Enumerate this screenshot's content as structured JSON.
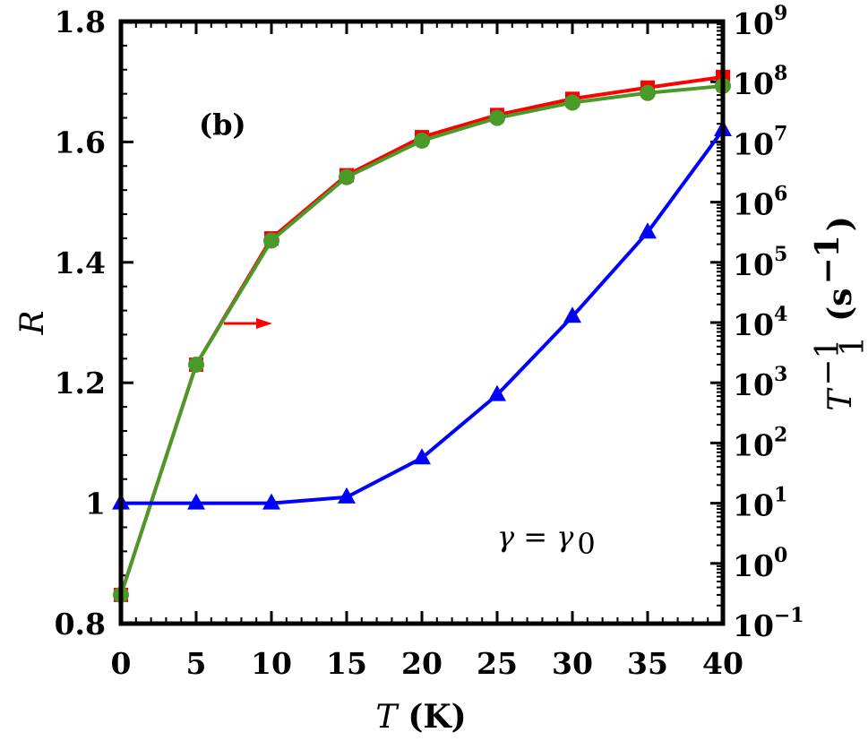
{
  "chart_data": {
    "type": "line",
    "x": [
      0,
      5,
      10,
      15,
      20,
      25,
      30,
      35,
      40
    ],
    "xlabel": {
      "symbol": "T",
      "unit": "(K)"
    },
    "ylabel_left": "R",
    "ylabel_right": {
      "symbol": "T",
      "sup": "−1",
      "sub": "1",
      "unit_open": "(s",
      "unit_sup": "−1",
      "unit_close": ")"
    },
    "xlim": [
      0,
      40
    ],
    "ylim_left": [
      0.8,
      1.8
    ],
    "ylim_right_log10": [
      -1,
      9
    ],
    "right_axis_scale": "log",
    "x_ticks": [
      "0",
      "5",
      "10",
      "15",
      "20",
      "25",
      "30",
      "35",
      "40"
    ],
    "y_left_ticks": [
      "0.8",
      "1",
      "1.2",
      "1.4",
      "1.6",
      "1.8"
    ],
    "y_right_ticks": [
      {
        "base": "10",
        "exp": "−1"
      },
      {
        "base": "10",
        "exp": "0"
      },
      {
        "base": "10",
        "exp": "1"
      },
      {
        "base": "10",
        "exp": "2"
      },
      {
        "base": "10",
        "exp": "3"
      },
      {
        "base": "10",
        "exp": "4"
      },
      {
        "base": "10",
        "exp": "5"
      },
      {
        "base": "10",
        "exp": "6"
      },
      {
        "base": "10",
        "exp": "7"
      },
      {
        "base": "10",
        "exp": "8"
      },
      {
        "base": "10",
        "exp": "9"
      }
    ],
    "series": [
      {
        "axis": "right",
        "marker": "square",
        "color": "#ff0000",
        "values": [
          0.3,
          2000,
          250000,
          2800000,
          12000000,
          28000000,
          52000000,
          80000000,
          120000000
        ]
      },
      {
        "axis": "right",
        "marker": "circle",
        "color": "#4a9a2a",
        "values": [
          0.3,
          2000,
          230000,
          2600000,
          10500000,
          25000000,
          45000000,
          65000000,
          85000000
        ]
      },
      {
        "axis": "left",
        "marker": "triangle",
        "color": "#0000ff",
        "values": [
          1.0,
          1.0,
          1.0,
          1.01,
          1.075,
          1.18,
          1.31,
          1.45,
          1.62
        ]
      }
    ],
    "annotations": {
      "panel_label": "(b)",
      "gamma_label": "γ = γ",
      "gamma_sub": "0"
    },
    "arrow_color": "#ff0000",
    "grid": false
  }
}
